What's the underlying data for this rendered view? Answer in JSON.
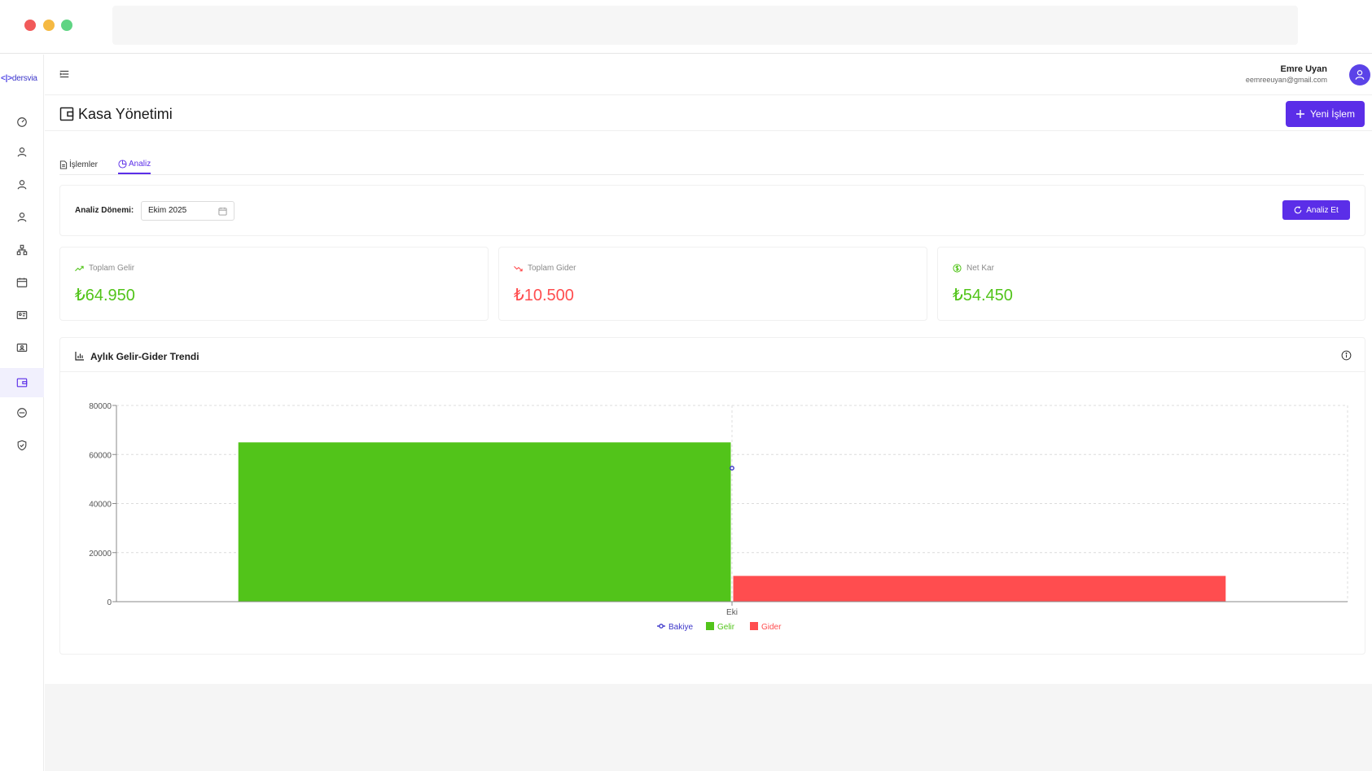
{
  "app": {
    "logo": {
      "prefix": "<|>",
      "text": "dersvia"
    }
  },
  "header": {
    "user_name": "Emre Uyan",
    "user_email": "eemreeuyan@gmail.com"
  },
  "page": {
    "title": "Kasa Yönetimi",
    "new_button": "Yeni İşlem"
  },
  "tabs": [
    {
      "label": "İşlemler",
      "active": false
    },
    {
      "label": "Analiz",
      "active": true
    }
  ],
  "filter": {
    "label": "Analiz Dönemi:",
    "period_value": "Ekim 2025",
    "analyze_button": "Analiz Et"
  },
  "stats": [
    {
      "label": "Toplam Gelir",
      "value": "₺64.950",
      "icon": "trend-up-icon"
    },
    {
      "label": "Toplam Gider",
      "value": "₺10.500",
      "icon": "trend-down-icon"
    },
    {
      "label": "Net Kar",
      "value": "₺54.450",
      "icon": "dollar-circle-icon"
    }
  ],
  "chart_card": {
    "title": "Aylık Gelir-Gider Trendi"
  },
  "colors": {
    "accent": "#5b2ee8",
    "income": "#52c41a",
    "expense": "#ff4d4f",
    "balance": "#3b35c9"
  },
  "chart_data": {
    "type": "bar",
    "categories": [
      "Eki"
    ],
    "series": [
      {
        "name": "Bakiye",
        "type": "line",
        "values": [
          54450
        ],
        "color": "#3b35c9"
      },
      {
        "name": "Gelir",
        "type": "bar",
        "values": [
          64950
        ],
        "color": "#52c41a"
      },
      {
        "name": "Gider",
        "type": "bar",
        "values": [
          10500
        ],
        "color": "#ff4d4f"
      }
    ],
    "yticks": [
      "0",
      "20000",
      "40000",
      "60000",
      "80000"
    ],
    "ylim": [
      0,
      80000
    ],
    "grid": true,
    "legend": "bottom-center"
  }
}
